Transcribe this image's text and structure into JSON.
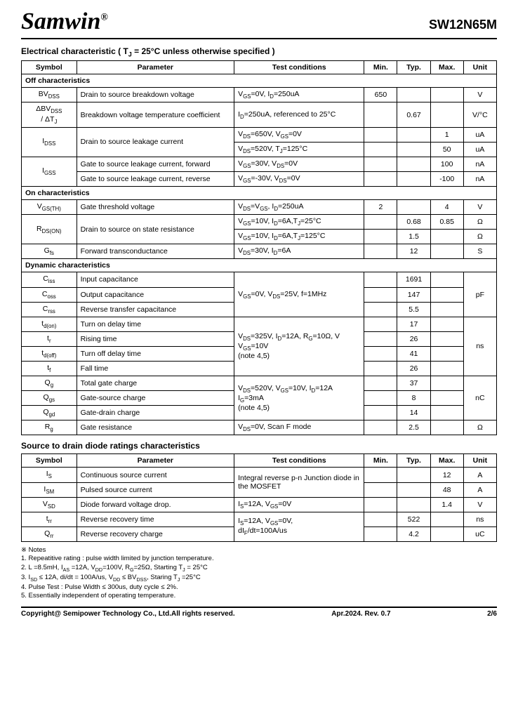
{
  "header": {
    "logo": "Samwin",
    "reg": "®",
    "part": "SW12N65M"
  },
  "section1": {
    "title": "Electrical characteristic ( T",
    "title_sub": "J",
    "title_end": " = 25°C unless otherwise specified )",
    "columns": {
      "symbol": "Symbol",
      "param": "Parameter",
      "test": "Test conditions",
      "min": "Min.",
      "typ": "Typ.",
      "max": "Max.",
      "unit": "Unit"
    },
    "cat_off": "Off characteristics",
    "cat_on": "On characteristics",
    "cat_dyn": "Dynamic characteristics"
  },
  "off": {
    "r1": {
      "sym": "BV",
      "sub": "DSS",
      "param": "Drain to source breakdown voltage",
      "test": "V",
      "t1s": "GS",
      "t2": "=0V, I",
      "t2s": "D",
      "t3": "=250uA",
      "min": "650",
      "unit": "V"
    },
    "r2": {
      "sym1": "ΔBV",
      "sub1": "DSS",
      "sym2": "/ ΔT",
      "sub2": "J",
      "param": "Breakdown voltage temperature coefficient",
      "test": "I",
      "ts": "D",
      "t2": "=250uA, referenced to 25°C",
      "typ": "0.67",
      "unit": "V/°C"
    },
    "r3": {
      "sym": "I",
      "sub": "DSS",
      "param": "Drain to source leakage current",
      "test1a": "V",
      "t1s": "DS",
      "t1b": "=650V, V",
      "t1s2": "GS",
      "t1c": "=0V",
      "max1": "1",
      "unit1": "uA",
      "test2a": "V",
      "t2s": "DS",
      "t2b": "=520V, T",
      "t2s2": "J",
      "t2c": "=125°C",
      "max2": "50",
      "unit2": "uA"
    },
    "r4": {
      "sym": "I",
      "sub": "GSS",
      "param1": "Gate to source leakage current, forward",
      "test1a": "V",
      "t1s": "GS",
      "t1b": "=30V, V",
      "t1s2": "DS",
      "t1c": "=0V",
      "max1": "100",
      "unit1": "nA",
      "param2": "Gate to source leakage current, reverse",
      "test2a": "V",
      "t2s": "GS",
      "t2b": "=-30V, V",
      "t2s2": "DS",
      "t2c": "=0V",
      "max2": "-100",
      "unit2": "nA"
    }
  },
  "on": {
    "r1": {
      "sym": "V",
      "sub": "GS(TH)",
      "param": "Gate threshold voltage",
      "test": "V",
      "ts1": "DS",
      "t2": "=V",
      "ts2": "GS",
      "t3": ", I",
      "ts3": "D",
      "t4": "=250uA",
      "min": "2",
      "max": "4",
      "unit": "V"
    },
    "r2": {
      "sym": "R",
      "sub": "DS(ON)",
      "param": "Drain to source on state resistance",
      "test1": "V",
      "t1s": "GS",
      "t1b": "=10V, I",
      "t1s2": "D",
      "t1c": "=6A,T",
      "t1s3": "J",
      "t1d": "=25°C",
      "typ1": "0.68",
      "max1": "0.85",
      "unit1": "Ω",
      "test2": "V",
      "t2s": "GS",
      "t2b": "=10V, I",
      "t2s2": "D",
      "t2c": "=6A,T",
      "t2s3": "J",
      "t2d": "=125°C",
      "typ2": "1.5",
      "unit2": "Ω"
    },
    "r3": {
      "sym": "G",
      "sub": "fs",
      "param": "Forward transconductance",
      "test": "V",
      "ts": "DS",
      "t2": "=30V, I",
      "ts2": "D",
      "t3": "=6A",
      "typ": "12",
      "unit": "S"
    }
  },
  "dyn": {
    "r1": {
      "sym": "C",
      "sub": "iss",
      "param": "Input capacitance",
      "typ": "1691"
    },
    "r2": {
      "sym": "C",
      "sub": "oss",
      "param": "Output capacitance",
      "typ": "147"
    },
    "r3": {
      "sym": "C",
      "sub": "rss",
      "param": "Reverse transfer capacitance",
      "typ": "5.5"
    },
    "test_cap": "V",
    "tcs1": "GS",
    "tc2": "=0V, V",
    "tcs2": "DS",
    "tc3": "=25V, f=1MHz",
    "unit_cap": "pF",
    "r4": {
      "sym": "t",
      "sub": "d(on)",
      "param": "Turn on delay time",
      "typ": "17"
    },
    "r5": {
      "sym": "t",
      "sub": "r",
      "param": "Rising time",
      "typ": "26"
    },
    "r6": {
      "sym": "t",
      "sub": "d(off)",
      "param": "Turn off delay time",
      "typ": "41"
    },
    "r7": {
      "sym": "t",
      "sub": "f",
      "param": "Fall time",
      "typ": "26"
    },
    "test_t1": "V",
    "tts1": "DS",
    "tt2": "=325V, I",
    "tts2": "D",
    "tt3": "=12A, R",
    "tts3": "G",
    "tt4": "=10Ω, V",
    "tts4": "GS",
    "tt5": "=10V",
    "tt6": "(note 4,5)",
    "unit_t": "ns",
    "r8": {
      "sym": "Q",
      "sub": "g",
      "param": "Total gate charge",
      "typ": "37"
    },
    "r9": {
      "sym": "Q",
      "sub": "gs",
      "param": "Gate-source charge",
      "typ": "8"
    },
    "r10": {
      "sym": "Q",
      "sub": "gd",
      "param": "Gate-drain charge",
      "typ": "14"
    },
    "test_q1": "V",
    "tqs1": "DS",
    "tq2": "=520V, V",
    "tqs2": "GS",
    "tq3": "=10V, I",
    "tqs3": "D",
    "tq4": "=12A",
    "tq5": "I",
    "tqs4": "G",
    "tq6": "=3mA",
    "tq7": "(note 4,5)",
    "unit_q": "nC",
    "r11": {
      "sym": "R",
      "sub": "g",
      "param": "Gate resistance",
      "test": "V",
      "ts": "DS",
      "t2": "=0V, Scan F mode",
      "typ": "2.5",
      "unit": "Ω"
    }
  },
  "section2": {
    "title": "Source to drain diode ratings characteristics",
    "columns": {
      "symbol": "Symbol",
      "param": "Parameter",
      "test": "Test conditions",
      "min": "Min.",
      "typ": "Typ.",
      "max": "Max.",
      "unit": "Unit"
    }
  },
  "diode": {
    "r1": {
      "sym": "I",
      "sub": "S",
      "param": "Continuous source current",
      "max": "12",
      "unit": "A"
    },
    "r2": {
      "sym": "I",
      "sub": "SM",
      "param": "Pulsed source current",
      "max": "48",
      "unit": "A"
    },
    "test_12": "Integral reverse p-n Junction diode in the MOSFET",
    "r3": {
      "sym": "V",
      "sub": "SD",
      "param": "Diode forward voltage drop.",
      "test": "I",
      "ts": "S",
      "t2": "=12A, V",
      "ts2": "GS",
      "t3": "=0V",
      "max": "1.4",
      "unit": "V"
    },
    "r4": {
      "sym": "t",
      "sub": "rr",
      "param": "Reverse recovery time",
      "typ": "522",
      "unit": "ns"
    },
    "r5": {
      "sym": "Q",
      "sub": "rr",
      "param": "Reverse recovery charge",
      "typ": "4.2",
      "unit": "uC"
    },
    "test_45a": "I",
    "t45s": "S",
    "t45b": "=12A, V",
    "t45s2": "GS",
    "t45c": "=0V,",
    "t45d": "dI",
    "t45s3": "F",
    "t45e": "/dt=100A/us"
  },
  "notes": {
    "head": "※ Notes",
    "n1": "1.      Repeatitive rating : pulse width limited by junction temperature.",
    "n2": "2.      L =8.5mH, I",
    "n2s": "AS",
    "n2b": " =12A, V",
    "n2s2": "DD",
    "n2c": "=100V, R",
    "n2s3": "G",
    "n2d": "=25Ω, Starting T",
    "n2s4": "J",
    "n2e": " = 25°C",
    "n3": "3.      I",
    "n3s": "SD",
    "n3b": " ≤ 12A, di/dt = 100A/us, V",
    "n3s2": "DD",
    "n3c": " ≤ BV",
    "n3s3": "DSS",
    "n3d": ", Staring T",
    "n3s4": "J",
    "n3e": " =25°C",
    "n4": "4.      Pulse Test : Pulse Width ≤ 300us, duty cycle ≤ 2%.",
    "n5": "5.      Essentially independent of operating temperature."
  },
  "footer": {
    "copyright": "Copyright@ Semipower Technology Co., Ltd.All rights reserved.",
    "rev": "Apr.2024. Rev. 0.7",
    "page": "2/6"
  }
}
